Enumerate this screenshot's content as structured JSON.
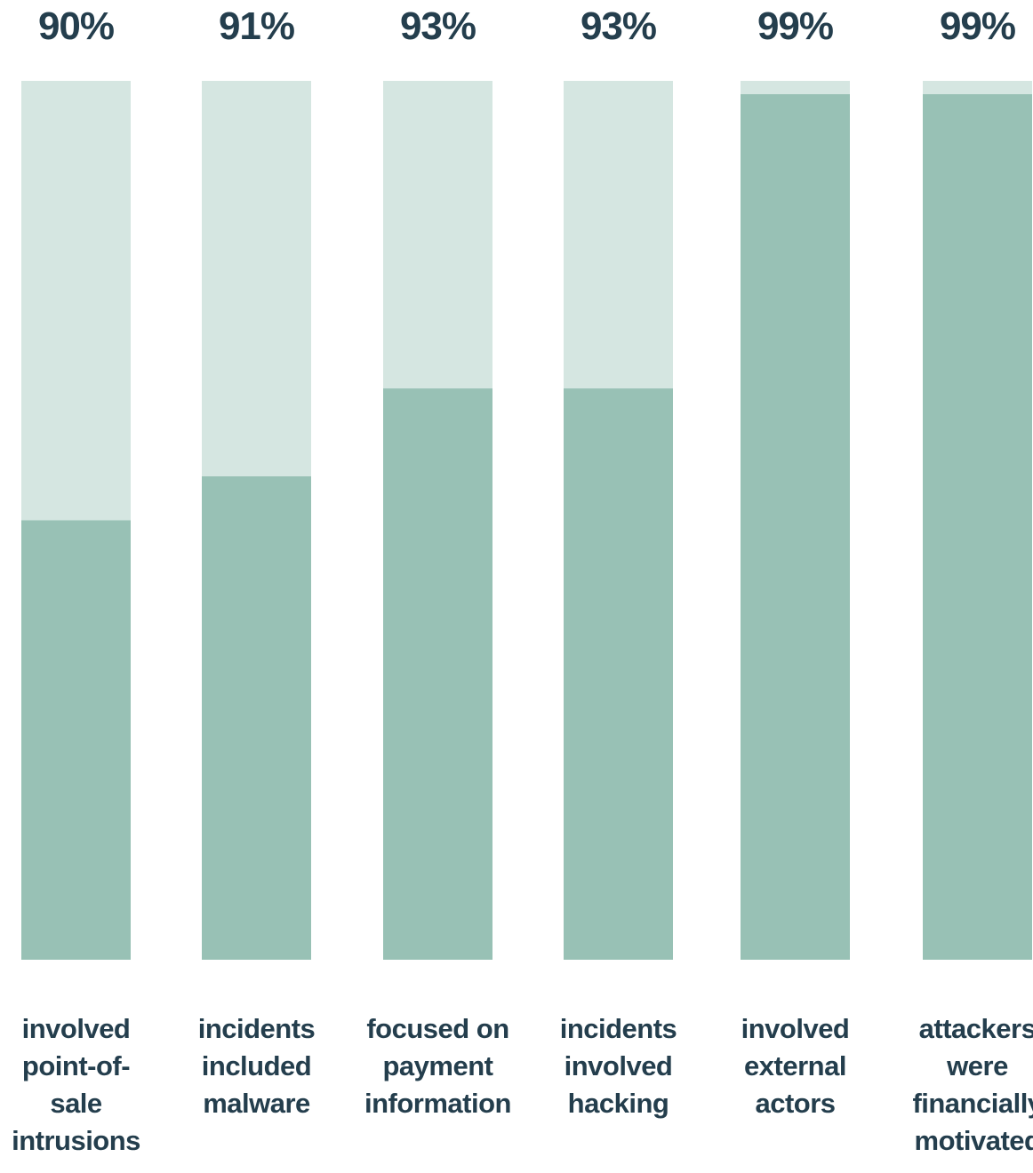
{
  "chart_data": {
    "type": "bar",
    "stacked_to": 100,
    "unit": "%",
    "colors": {
      "value": "#98c1b5",
      "remainder": "#d5e6e1",
      "text": "#243e4d"
    },
    "categories": [
      [
        "involved",
        "point-of-",
        "sale",
        "intrusions"
      ],
      [
        "incidents",
        "included",
        "malware"
      ],
      [
        "focused on",
        "payment",
        "information"
      ],
      [
        "incidents",
        "involved",
        "hacking"
      ],
      [
        "involved",
        "external",
        "actors"
      ],
      [
        "attackers",
        "were",
        "financially",
        "motivated"
      ]
    ],
    "values": [
      90,
      91,
      93,
      93,
      99,
      99
    ],
    "labels": [
      "90%",
      "91%",
      "93%",
      "93%",
      "99%",
      "99%"
    ],
    "ylim": [
      0,
      100
    ],
    "grid": false
  }
}
